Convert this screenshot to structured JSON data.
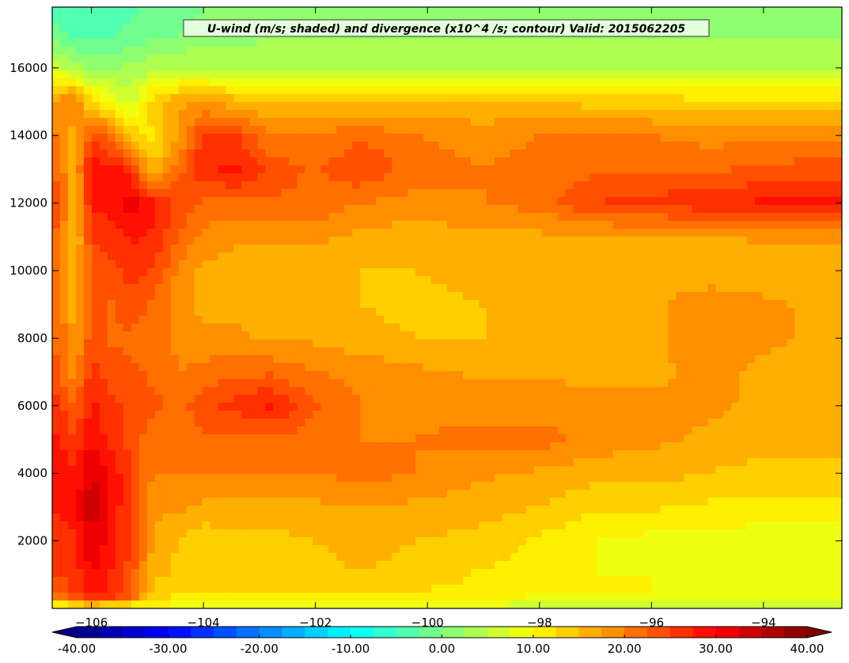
{
  "chart_data": {
    "type": "heatmap",
    "title": "U-wind (m/s; shaded) and divergence (x10^4 /s; contour) Valid: 2015062205",
    "xlabel": "",
    "ylabel": "",
    "xlim": [
      -106.7,
      -92.6
    ],
    "ylim": [
      0,
      17800
    ],
    "x_ticks": [
      -106,
      -104,
      -102,
      -100,
      -98,
      -96,
      -94
    ],
    "x_tick_labels": [
      "−106",
      "−104",
      "−102",
      "−100",
      "−98",
      "−96",
      "−94"
    ],
    "y_ticks": [
      2000,
      4000,
      6000,
      8000,
      10000,
      12000,
      14000,
      16000
    ],
    "y_tick_labels": [
      "2000",
      "4000",
      "6000",
      "8000",
      "10000",
      "12000",
      "14000",
      "16000"
    ],
    "colorbar": {
      "min": -40,
      "max": 40,
      "step": 2.5,
      "extend": "both",
      "colormap": "jet",
      "ticks": [
        -40,
        -30,
        -20,
        -10,
        0,
        10,
        20,
        30,
        40
      ],
      "tick_labels": [
        "-40.00",
        "-30.00",
        "-20.00",
        "-10.00",
        "0.00",
        "10.00",
        "20.00",
        "30.00",
        "40.00"
      ]
    },
    "grid": false,
    "values_description_fields": {
      "x": [
        -106.6,
        -106.3,
        -106.0,
        -105.7,
        -105.3,
        -104.9,
        -104.4,
        -104.0,
        -103.4,
        -102.8,
        -102.0,
        -101.2,
        -100.2,
        -99.0,
        -98.0,
        -97.0,
        -96.0,
        -95.0,
        -94.0,
        -93.0,
        -92.6
      ],
      "y": [
        0,
        400,
        1000,
        2000,
        3000,
        4000,
        5000,
        6000,
        7000,
        8000,
        9000,
        10000,
        11000,
        12000,
        13000,
        14000,
        15000,
        16000,
        17000,
        17800
      ],
      "z": [
        [
          6,
          8,
          10,
          8,
          8,
          10,
          8,
          6,
          6,
          6,
          6,
          6,
          6,
          6,
          6,
          5,
          5,
          5,
          5,
          5,
          5
        ],
        [
          22,
          26,
          30,
          28,
          24,
          14,
          12,
          12,
          12,
          12,
          12,
          12,
          12,
          12,
          10,
          10,
          10,
          10,
          10,
          10,
          10
        ],
        [
          25,
          26,
          30,
          28,
          24,
          16,
          14,
          14,
          14,
          14,
          14,
          15,
          14,
          12,
          12,
          10,
          10,
          8,
          8,
          8,
          8
        ],
        [
          25,
          27,
          33,
          29,
          25,
          17,
          15,
          13,
          14,
          14,
          15,
          16,
          15,
          14,
          12,
          10,
          9,
          9,
          8,
          8,
          8
        ],
        [
          28,
          29,
          34,
          30,
          25,
          18,
          18,
          17,
          17,
          17,
          17,
          17,
          17,
          16,
          15,
          13,
          13,
          12,
          12,
          12,
          12
        ],
        [
          30,
          28,
          33,
          30,
          25,
          20,
          20,
          20,
          20,
          20,
          20,
          21,
          20,
          18,
          17,
          16,
          16,
          15,
          14,
          14,
          14
        ],
        [
          28,
          25,
          30,
          27,
          24,
          21,
          21,
          22,
          22,
          22,
          21,
          20,
          20,
          21,
          21,
          19,
          18,
          17,
          16,
          16,
          16
        ],
        [
          26,
          22,
          28,
          26,
          24,
          23,
          22,
          24,
          26,
          28,
          23,
          20,
          19,
          19,
          19,
          18,
          18,
          18,
          17,
          17,
          17
        ],
        [
          23,
          19,
          26,
          24,
          23,
          22,
          20,
          21,
          22,
          22,
          20,
          19,
          18,
          17,
          17,
          17,
          17,
          18,
          17,
          17,
          17
        ],
        [
          22,
          17,
          24,
          22,
          22,
          21,
          19,
          18,
          18,
          17,
          17,
          16,
          15,
          15,
          15,
          16,
          17,
          19,
          18,
          17,
          17
        ],
        [
          22,
          16,
          24,
          22,
          24,
          22,
          18,
          17,
          17,
          16,
          16,
          15,
          14,
          15,
          15,
          16,
          17,
          19,
          18,
          17,
          17
        ],
        [
          22,
          15,
          24,
          24,
          26,
          25,
          19,
          17,
          16,
          16,
          16,
          15,
          15,
          16,
          16,
          16,
          16,
          16,
          16,
          16,
          16
        ],
        [
          22,
          14,
          25,
          26,
          28,
          27,
          22,
          19,
          18,
          18,
          18,
          17,
          16,
          17,
          17,
          17,
          17,
          17,
          18,
          18,
          18
        ],
        [
          24,
          16,
          28,
          28,
          32,
          28,
          24,
          22,
          22,
          22,
          22,
          20,
          19,
          20,
          21,
          25,
          26,
          27,
          28,
          28,
          28
        ],
        [
          22,
          16,
          29,
          29,
          26,
          15,
          22,
          27,
          28,
          24,
          22,
          25,
          21,
          20,
          21,
          22,
          22,
          22,
          23,
          24,
          24
        ],
        [
          20,
          15,
          24,
          22,
          14,
          12,
          18,
          26,
          25,
          20,
          20,
          22,
          20,
          19,
          20,
          20,
          20,
          19,
          19,
          19,
          19
        ],
        [
          18,
          21,
          12,
          10,
          6,
          14,
          17,
          17,
          16,
          15,
          15,
          15,
          15,
          15,
          15,
          14,
          14,
          13,
          13,
          13,
          13
        ],
        [
          6,
          4,
          2,
          2,
          3,
          4,
          5,
          5,
          5,
          5,
          5,
          5,
          5,
          5,
          5,
          5,
          5,
          5,
          5,
          5,
          5
        ],
        [
          -2,
          -3,
          -4,
          -3,
          -2,
          -1,
          0,
          1,
          1,
          2,
          2,
          2,
          2,
          2,
          2,
          2,
          2,
          2,
          2,
          2,
          2
        ],
        [
          -3,
          -4,
          -5,
          -4,
          -3,
          -2,
          -1,
          0,
          0,
          1,
          1,
          1,
          1,
          1,
          1,
          1,
          1,
          1,
          1,
          1,
          1
        ]
      ]
    }
  }
}
